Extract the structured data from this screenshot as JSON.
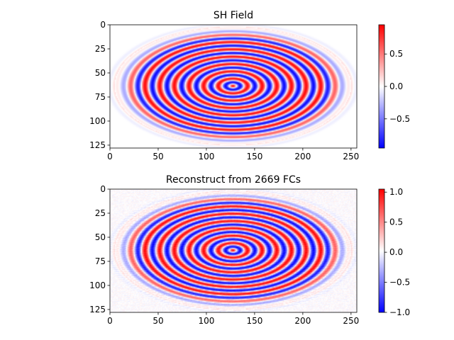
{
  "chart_data": [
    {
      "type": "heatmap",
      "title": "SH Field",
      "xlabel": "",
      "ylabel": "",
      "xlim": [
        0,
        256
      ],
      "ylim": [
        128,
        0
      ],
      "xticks": [
        0,
        50,
        100,
        150,
        200,
        250
      ],
      "yticks": [
        0,
        25,
        50,
        75,
        100,
        125
      ],
      "colormap": "bwr",
      "colors": {
        "low": "#0000ff",
        "mid": "#ffffff",
        "high": "#ff0000"
      },
      "field": {
        "shape": "elliptical stripe pattern",
        "center": [
          127,
          63
        ],
        "semi_axes": [
          118,
          59
        ],
        "stripe_period_px": 7.6,
        "inner_line_segment_x": [
          52,
          202
        ]
      },
      "colorbar": {
        "range": [
          -0.95,
          0.95
        ],
        "ticks": [
          -0.5,
          0.0,
          0.5
        ],
        "tick_labels": [
          "−0.5",
          "0.0",
          "0.5"
        ]
      }
    },
    {
      "type": "heatmap",
      "title": "Reconstruct from 2669 FCs",
      "xlabel": "",
      "ylabel": "",
      "xlim": [
        0,
        256
      ],
      "ylim": [
        128,
        0
      ],
      "xticks": [
        0,
        50,
        100,
        150,
        200,
        250
      ],
      "yticks": [
        0,
        25,
        50,
        75,
        100,
        125
      ],
      "colormap": "bwr",
      "colors": {
        "low": "#0000ff",
        "mid": "#ffffff",
        "high": "#ff0000"
      },
      "field": {
        "shape": "elliptical stripe pattern",
        "center": [
          127,
          63
        ],
        "semi_axes": [
          118,
          59
        ],
        "stripe_period_px": 7.6,
        "inner_line_segment_x": [
          52,
          202
        ]
      },
      "colorbar": {
        "range": [
          -1.0,
          1.05
        ],
        "ticks": [
          -1.0,
          -0.5,
          0.0,
          0.5,
          1.0
        ],
        "tick_labels": [
          "−1.0",
          "−0.5",
          "0.0",
          "0.5",
          "1.0"
        ]
      }
    }
  ]
}
